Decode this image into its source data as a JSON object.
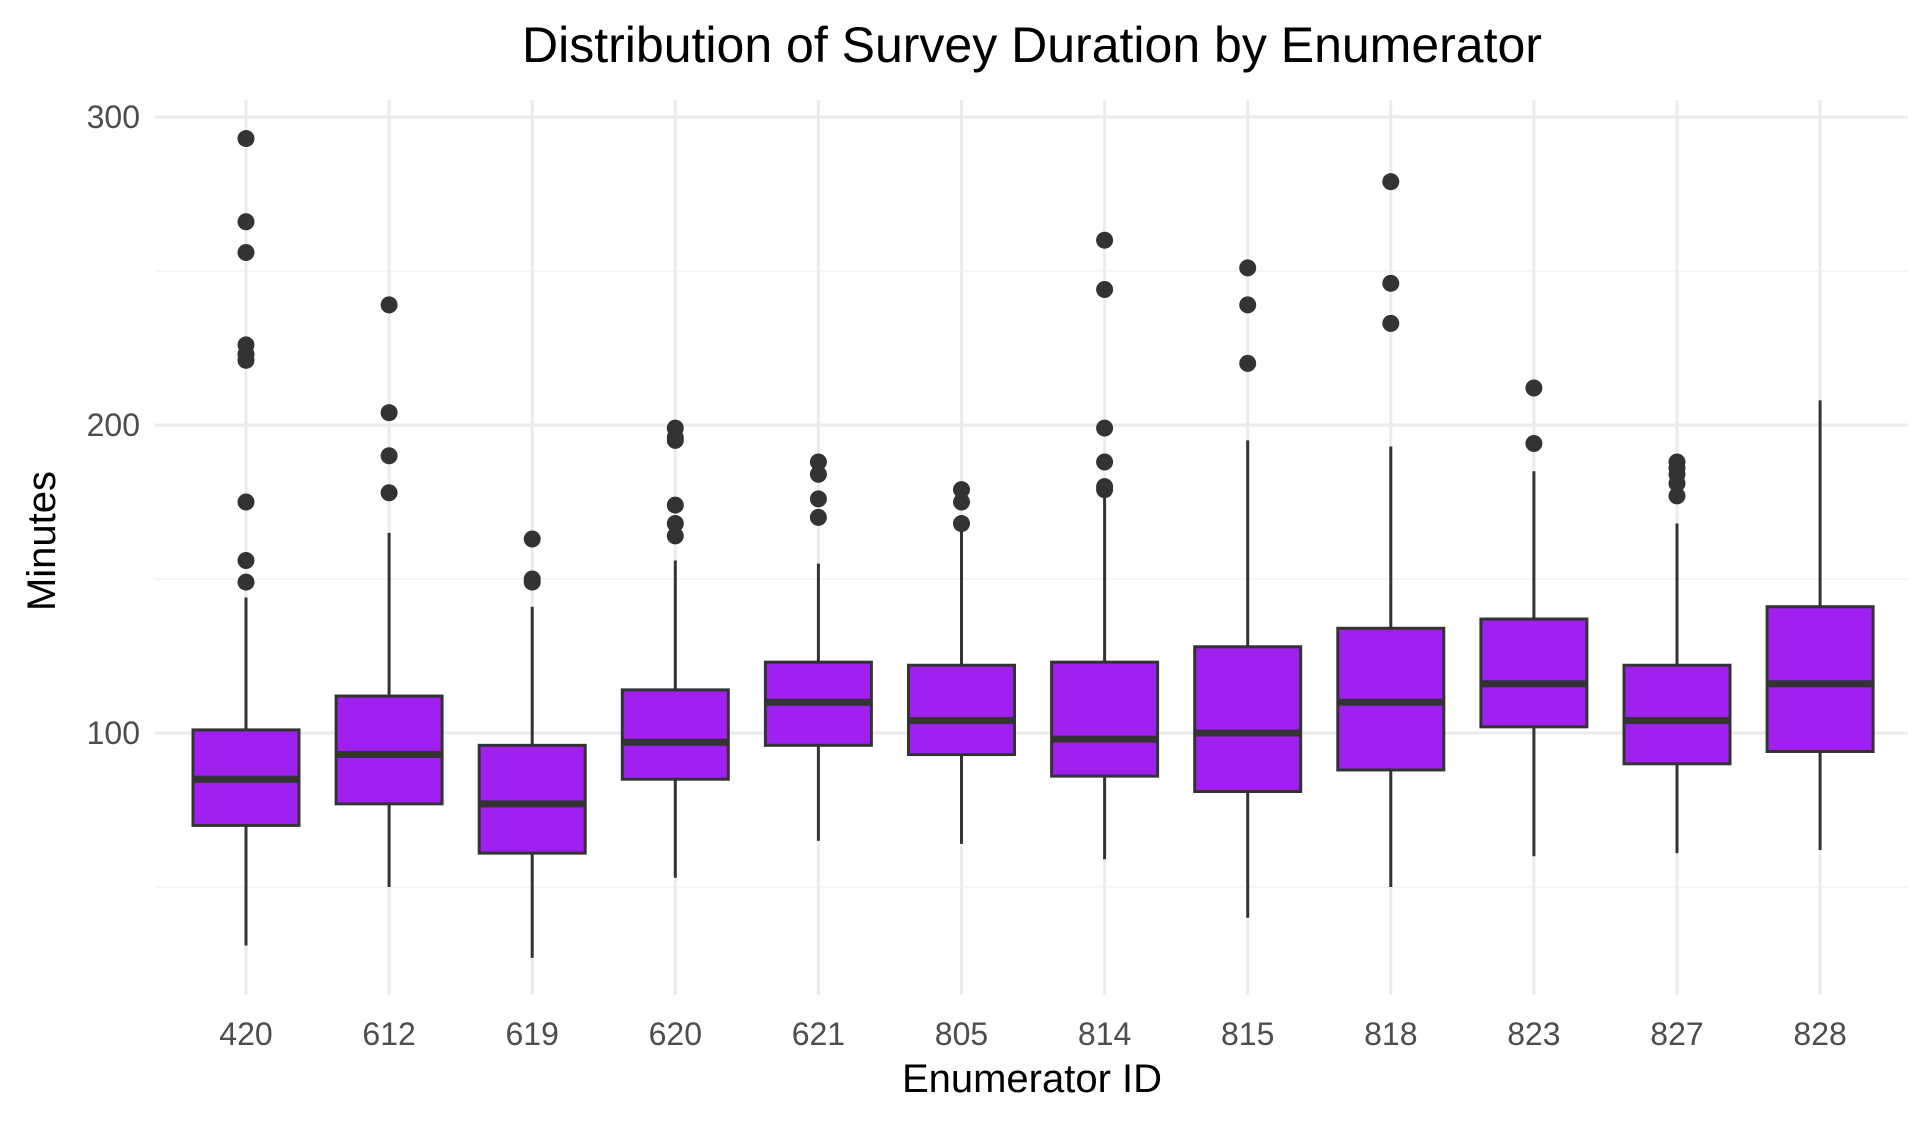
{
  "chart_data": {
    "type": "boxplot",
    "title": "Distribution of Survey Duration by Enumerator",
    "xlabel": "Enumerator ID",
    "ylabel": "Minutes",
    "ylim": [
      20,
      305
    ],
    "yticks": [
      100,
      200,
      300
    ],
    "grid": true,
    "legend": "none",
    "colors": {
      "box_fill": "#a020f0",
      "box_stroke": "#333333",
      "whisker": "#333333",
      "outlier": "#333333",
      "grid_major": "#ebebeb",
      "grid_minor": "#f3f3f3",
      "tick_text": "#4d4d4d",
      "title_text": "#000000"
    },
    "categories": [
      "420",
      "612",
      "619",
      "620",
      "621",
      "805",
      "814",
      "815",
      "818",
      "823",
      "827",
      "828"
    ],
    "boxes": [
      {
        "id": "420",
        "whisker_low": 31,
        "q1": 70,
        "median": 85,
        "q3": 101,
        "whisker_high": 144,
        "outliers": [
          149,
          156,
          175,
          221,
          223,
          226,
          256,
          266,
          293
        ]
      },
      {
        "id": "612",
        "whisker_low": 50,
        "q1": 77,
        "median": 93,
        "q3": 112,
        "whisker_high": 165,
        "outliers": [
          178,
          190,
          204,
          239
        ]
      },
      {
        "id": "619",
        "whisker_low": 27,
        "q1": 61,
        "median": 77,
        "q3": 96,
        "whisker_high": 141,
        "outliers": [
          149,
          150,
          163
        ]
      },
      {
        "id": "620",
        "whisker_low": 53,
        "q1": 85,
        "median": 97,
        "q3": 114,
        "whisker_high": 156,
        "outliers": [
          164,
          168,
          174,
          195,
          196,
          199
        ]
      },
      {
        "id": "621",
        "whisker_low": 65,
        "q1": 96,
        "median": 110,
        "q3": 123,
        "whisker_high": 155,
        "outliers": [
          170,
          176,
          184,
          188
        ]
      },
      {
        "id": "805",
        "whisker_low": 64,
        "q1": 93,
        "median": 104,
        "q3": 122,
        "whisker_high": 166,
        "outliers": [
          168,
          175,
          179
        ]
      },
      {
        "id": "814",
        "whisker_low": 59,
        "q1": 86,
        "median": 98,
        "q3": 123,
        "whisker_high": 178,
        "outliers": [
          179,
          180,
          188,
          199,
          244,
          260
        ]
      },
      {
        "id": "815",
        "whisker_low": 40,
        "q1": 81,
        "median": 100,
        "q3": 128,
        "whisker_high": 195,
        "outliers": [
          220,
          239,
          251
        ]
      },
      {
        "id": "818",
        "whisker_low": 50,
        "q1": 88,
        "median": 110,
        "q3": 134,
        "whisker_high": 193,
        "outliers": [
          233,
          246,
          279
        ]
      },
      {
        "id": "823",
        "whisker_low": 60,
        "q1": 102,
        "median": 116,
        "q3": 137,
        "whisker_high": 185,
        "outliers": [
          194,
          212
        ]
      },
      {
        "id": "827",
        "whisker_low": 61,
        "q1": 90,
        "median": 104,
        "q3": 122,
        "whisker_high": 168,
        "outliers": [
          177,
          181,
          184,
          186,
          188
        ]
      },
      {
        "id": "828",
        "whisker_low": 62,
        "q1": 94,
        "median": 116,
        "q3": 141,
        "whisker_high": 208,
        "outliers": []
      }
    ]
  }
}
